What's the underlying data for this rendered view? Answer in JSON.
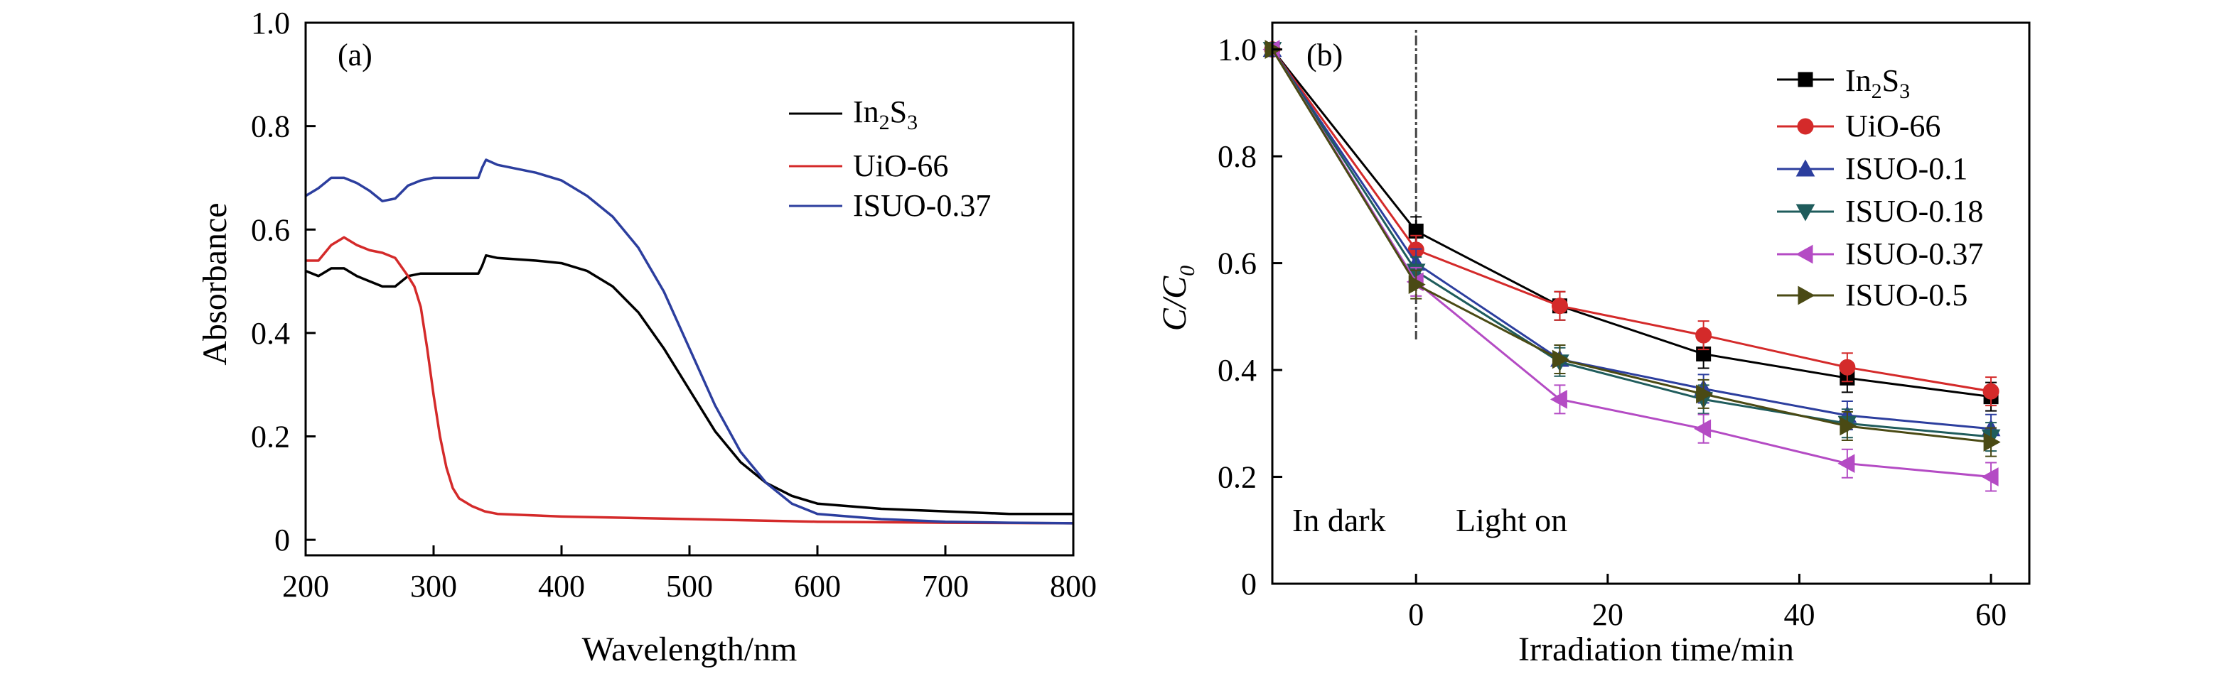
{
  "chart_data": [
    {
      "panel": "(a)",
      "type": "line",
      "xlabel": "Wavelength/nm",
      "ylabel": "Absorbance",
      "xlim": [
        200,
        800
      ],
      "ylim": [
        -0.03,
        1.0
      ],
      "xticks": [
        200,
        300,
        400,
        500,
        600,
        700,
        800
      ],
      "yticks": [
        0,
        0.2,
        0.4,
        0.6,
        0.8,
        1.0
      ],
      "ytick_labels": [
        "0",
        "0.2",
        "0.4",
        "0.6",
        "0.8",
        "1.0"
      ],
      "legend": {
        "position": "top-right"
      },
      "series": [
        {
          "name": "In2S3",
          "name_base": "In",
          "name_sub1": "2",
          "name_mid": "S",
          "name_sub2": "3",
          "color": "#000000",
          "x": [
            200,
            210,
            220,
            230,
            240,
            250,
            260,
            270,
            280,
            290,
            300,
            320,
            335,
            338,
            341,
            350,
            380,
            400,
            420,
            440,
            460,
            480,
            500,
            520,
            540,
            560,
            580,
            600,
            650,
            700,
            750,
            800
          ],
          "y": [
            0.52,
            0.51,
            0.525,
            0.525,
            0.51,
            0.5,
            0.49,
            0.49,
            0.51,
            0.515,
            0.515,
            0.515,
            0.515,
            0.53,
            0.55,
            0.545,
            0.54,
            0.535,
            0.52,
            0.49,
            0.44,
            0.37,
            0.29,
            0.21,
            0.15,
            0.11,
            0.085,
            0.07,
            0.06,
            0.055,
            0.05,
            0.05
          ]
        },
        {
          "name": "UiO-66",
          "color": "#d42a2a",
          "x": [
            200,
            210,
            220,
            230,
            240,
            250,
            260,
            270,
            280,
            285,
            290,
            295,
            300,
            305,
            310,
            315,
            320,
            330,
            340,
            350,
            400,
            500,
            600,
            700,
            800
          ],
          "y": [
            0.54,
            0.54,
            0.57,
            0.585,
            0.57,
            0.56,
            0.555,
            0.545,
            0.51,
            0.49,
            0.45,
            0.37,
            0.28,
            0.2,
            0.14,
            0.1,
            0.08,
            0.065,
            0.055,
            0.05,
            0.045,
            0.04,
            0.035,
            0.033,
            0.032
          ]
        },
        {
          "name": "ISUO-0.37",
          "color": "#2c3e9e",
          "x": [
            200,
            210,
            220,
            230,
            240,
            250,
            260,
            270,
            280,
            290,
            300,
            320,
            335,
            338,
            341,
            350,
            380,
            400,
            420,
            440,
            460,
            480,
            500,
            520,
            540,
            560,
            580,
            600,
            650,
            700,
            750,
            800
          ],
          "y": [
            0.665,
            0.68,
            0.7,
            0.7,
            0.69,
            0.675,
            0.655,
            0.66,
            0.685,
            0.695,
            0.7,
            0.7,
            0.7,
            0.72,
            0.735,
            0.725,
            0.71,
            0.695,
            0.665,
            0.625,
            0.565,
            0.48,
            0.37,
            0.26,
            0.17,
            0.11,
            0.07,
            0.05,
            0.04,
            0.035,
            0.033,
            0.032
          ]
        }
      ]
    },
    {
      "panel": "(b)",
      "type": "line",
      "xlabel": "Irradiation time/min",
      "ylabel": "C/C0",
      "ylabel_main": "C/C",
      "ylabel_sub": "0",
      "xlim": [
        -15,
        64
      ],
      "ylim": [
        0,
        1.05
      ],
      "xticks": [
        0,
        20,
        40,
        60
      ],
      "yticks": [
        0,
        0.2,
        0.4,
        0.6,
        0.8,
        1.0
      ],
      "ytick_labels": [
        "0",
        "0.2",
        "0.4",
        "0.6",
        "0.8",
        "1.0"
      ],
      "annotations": [
        "In dark",
        "Light on"
      ],
      "dark_light_boundary_x": 0,
      "legend": {
        "position": "top-right"
      },
      "x": [
        -15,
        0,
        15,
        30,
        45,
        60
      ],
      "series": [
        {
          "name": "In2S3",
          "name_base": "In",
          "name_sub1": "2",
          "name_mid": "S",
          "name_sub2": "3",
          "color": "#000000",
          "marker": "square",
          "y": [
            1.0,
            0.66,
            0.52,
            0.43,
            0.385,
            0.35
          ]
        },
        {
          "name": "UiO-66",
          "color": "#d42a2a",
          "marker": "circle",
          "y": [
            1.0,
            0.625,
            0.52,
            0.465,
            0.405,
            0.36
          ]
        },
        {
          "name": "ISUO-0.1",
          "color": "#2c3e9e",
          "marker": "triangle-up",
          "y": [
            1.0,
            0.6,
            0.42,
            0.365,
            0.315,
            0.29
          ]
        },
        {
          "name": "ISUO-0.18",
          "color": "#1f5c5c",
          "marker": "triangle-down",
          "y": [
            1.0,
            0.585,
            0.415,
            0.345,
            0.3,
            0.275
          ]
        },
        {
          "name": "ISUO-0.37",
          "color": "#b44bc4",
          "marker": "triangle-left",
          "y": [
            1.0,
            0.565,
            0.345,
            0.29,
            0.225,
            0.2
          ]
        },
        {
          "name": "ISUO-0.5",
          "color": "#4a4a14",
          "marker": "triangle-right",
          "y": [
            1.0,
            0.56,
            0.42,
            0.355,
            0.295,
            0.265
          ]
        }
      ]
    }
  ]
}
